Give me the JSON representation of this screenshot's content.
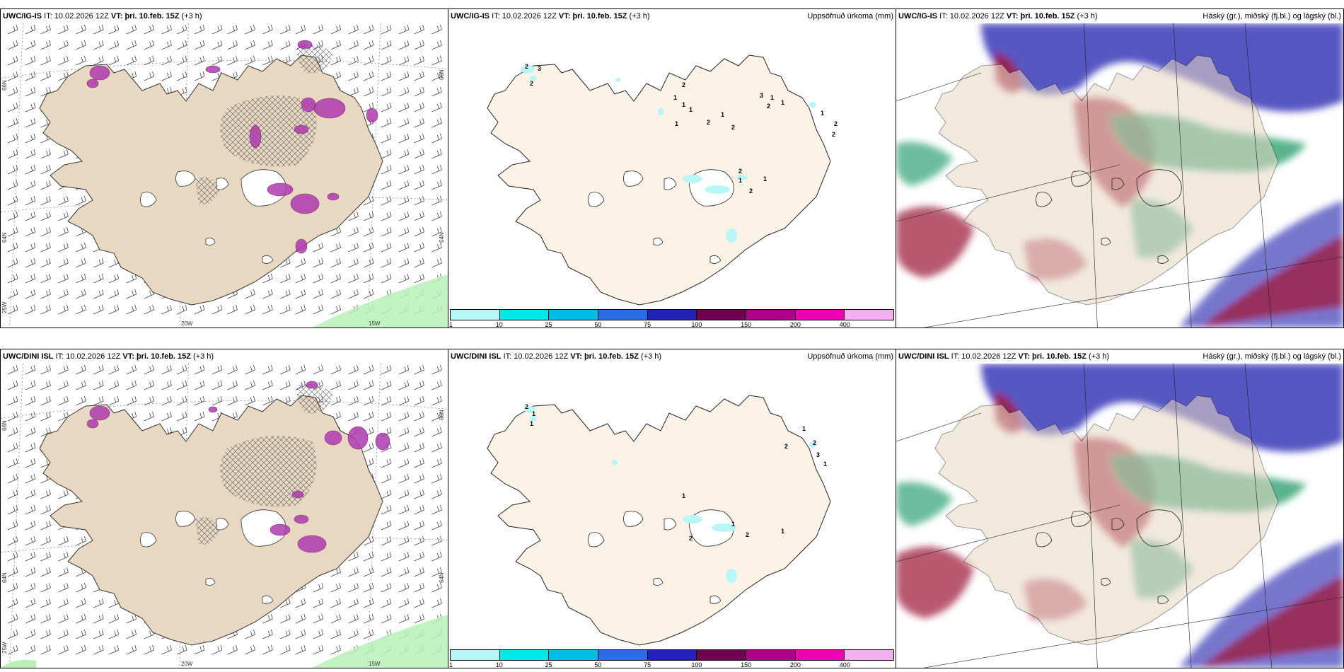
{
  "panels": [
    {
      "id": "p1",
      "model": "UWC/IG-IS",
      "it_label": "IT:",
      "it": "10.02.2026 12Z",
      "vt_label": "VT:",
      "vt": "þri. 10.feb. 15Z",
      "lead": "(+3 h)",
      "right": "",
      "map_type": "wind-precip",
      "axis_labels": {
        "lat1": "66N",
        "lat2": "64N",
        "lon1": "20W",
        "lon2": "15W",
        "lon3": "25W",
        "lat_right1": "66N",
        "lat_right2": "64N"
      }
    },
    {
      "id": "p2",
      "model": "UWC/IG-IS",
      "it_label": "IT:",
      "it": "10.02.2026 12Z",
      "vt_label": "VT:",
      "vt": "þri. 10.feb. 15Z",
      "lead": "(+3 h)",
      "right": "Uppsöfnuð úrkoma (mm)",
      "map_type": "accum-precip",
      "values": [
        "2",
        "3",
        "2",
        "2",
        "1",
        "1",
        "1",
        "1",
        "1",
        "2",
        "2",
        "3",
        "1",
        "2",
        "1",
        "1",
        "2",
        "2",
        "2",
        "1",
        "2",
        "1"
      ]
    },
    {
      "id": "p3",
      "model": "UWC/IG-IS",
      "it_label": "IT:",
      "it": "10.02.2026 12Z",
      "vt_label": "VT:",
      "vt": "þri. 10.feb. 15Z",
      "lead": "(+3 h)",
      "right": "Háský (gr.), miðský (fj.bl.) og lágský (bl.)",
      "map_type": "clouds"
    },
    {
      "id": "p4",
      "model": "UWC/DINI ISL",
      "it_label": "IT:",
      "it": "10.02.2026 12Z",
      "vt_label": "VT:",
      "vt": "þri. 10.feb. 15Z",
      "lead": "(+3 h)",
      "right": "",
      "map_type": "wind-precip",
      "axis_labels": {
        "lat1": "66N",
        "lat2": "64N",
        "lon1": "20W",
        "lon2": "15W",
        "lon3": "25W",
        "lat_right1": "66N",
        "lat_right2": "64N"
      }
    },
    {
      "id": "p5",
      "model": "UWC/DINI ISL",
      "it_label": "IT:",
      "it": "10.02.2026 12Z",
      "vt_label": "VT:",
      "vt": "þri. 10.feb. 15Z",
      "lead": "(+3 h)",
      "right": "Uppsöfnuð úrkoma (mm)",
      "map_type": "accum-precip",
      "values": [
        "2",
        "1",
        "1",
        "1",
        "2",
        "2",
        "3",
        "1",
        "1",
        "2",
        "2",
        "1",
        "1"
      ]
    },
    {
      "id": "p6",
      "model": "UWC/DINI ISL",
      "it_label": "IT:",
      "it": "10.02.2026 12Z",
      "vt_label": "VT:",
      "vt": "þri. 10.feb. 15Z",
      "lead": "(+3 h)",
      "right": "Háský (gr.), miðský (fj.bl.) og lágský (bl.)",
      "map_type": "clouds"
    }
  ],
  "colorbar": {
    "colors": [
      "#b8f7f7",
      "#00e8e8",
      "#00bde8",
      "#2a6be6",
      "#2222b8",
      "#700050",
      "#b0008a",
      "#f000b4",
      "#f4b0f0"
    ],
    "labels": [
      "1",
      "10",
      "25",
      "50",
      "75",
      "100",
      "150",
      "200",
      "400"
    ]
  },
  "colors": {
    "land": "#e8d8c2",
    "land_light": "#fdf2e6",
    "precip_purple": "#b03ab0",
    "precip_green": "#b8f0b8",
    "high_cloud": "#1f9a6a",
    "mid_cloud": "#a02040",
    "low_cloud": "#3a3ab8"
  }
}
